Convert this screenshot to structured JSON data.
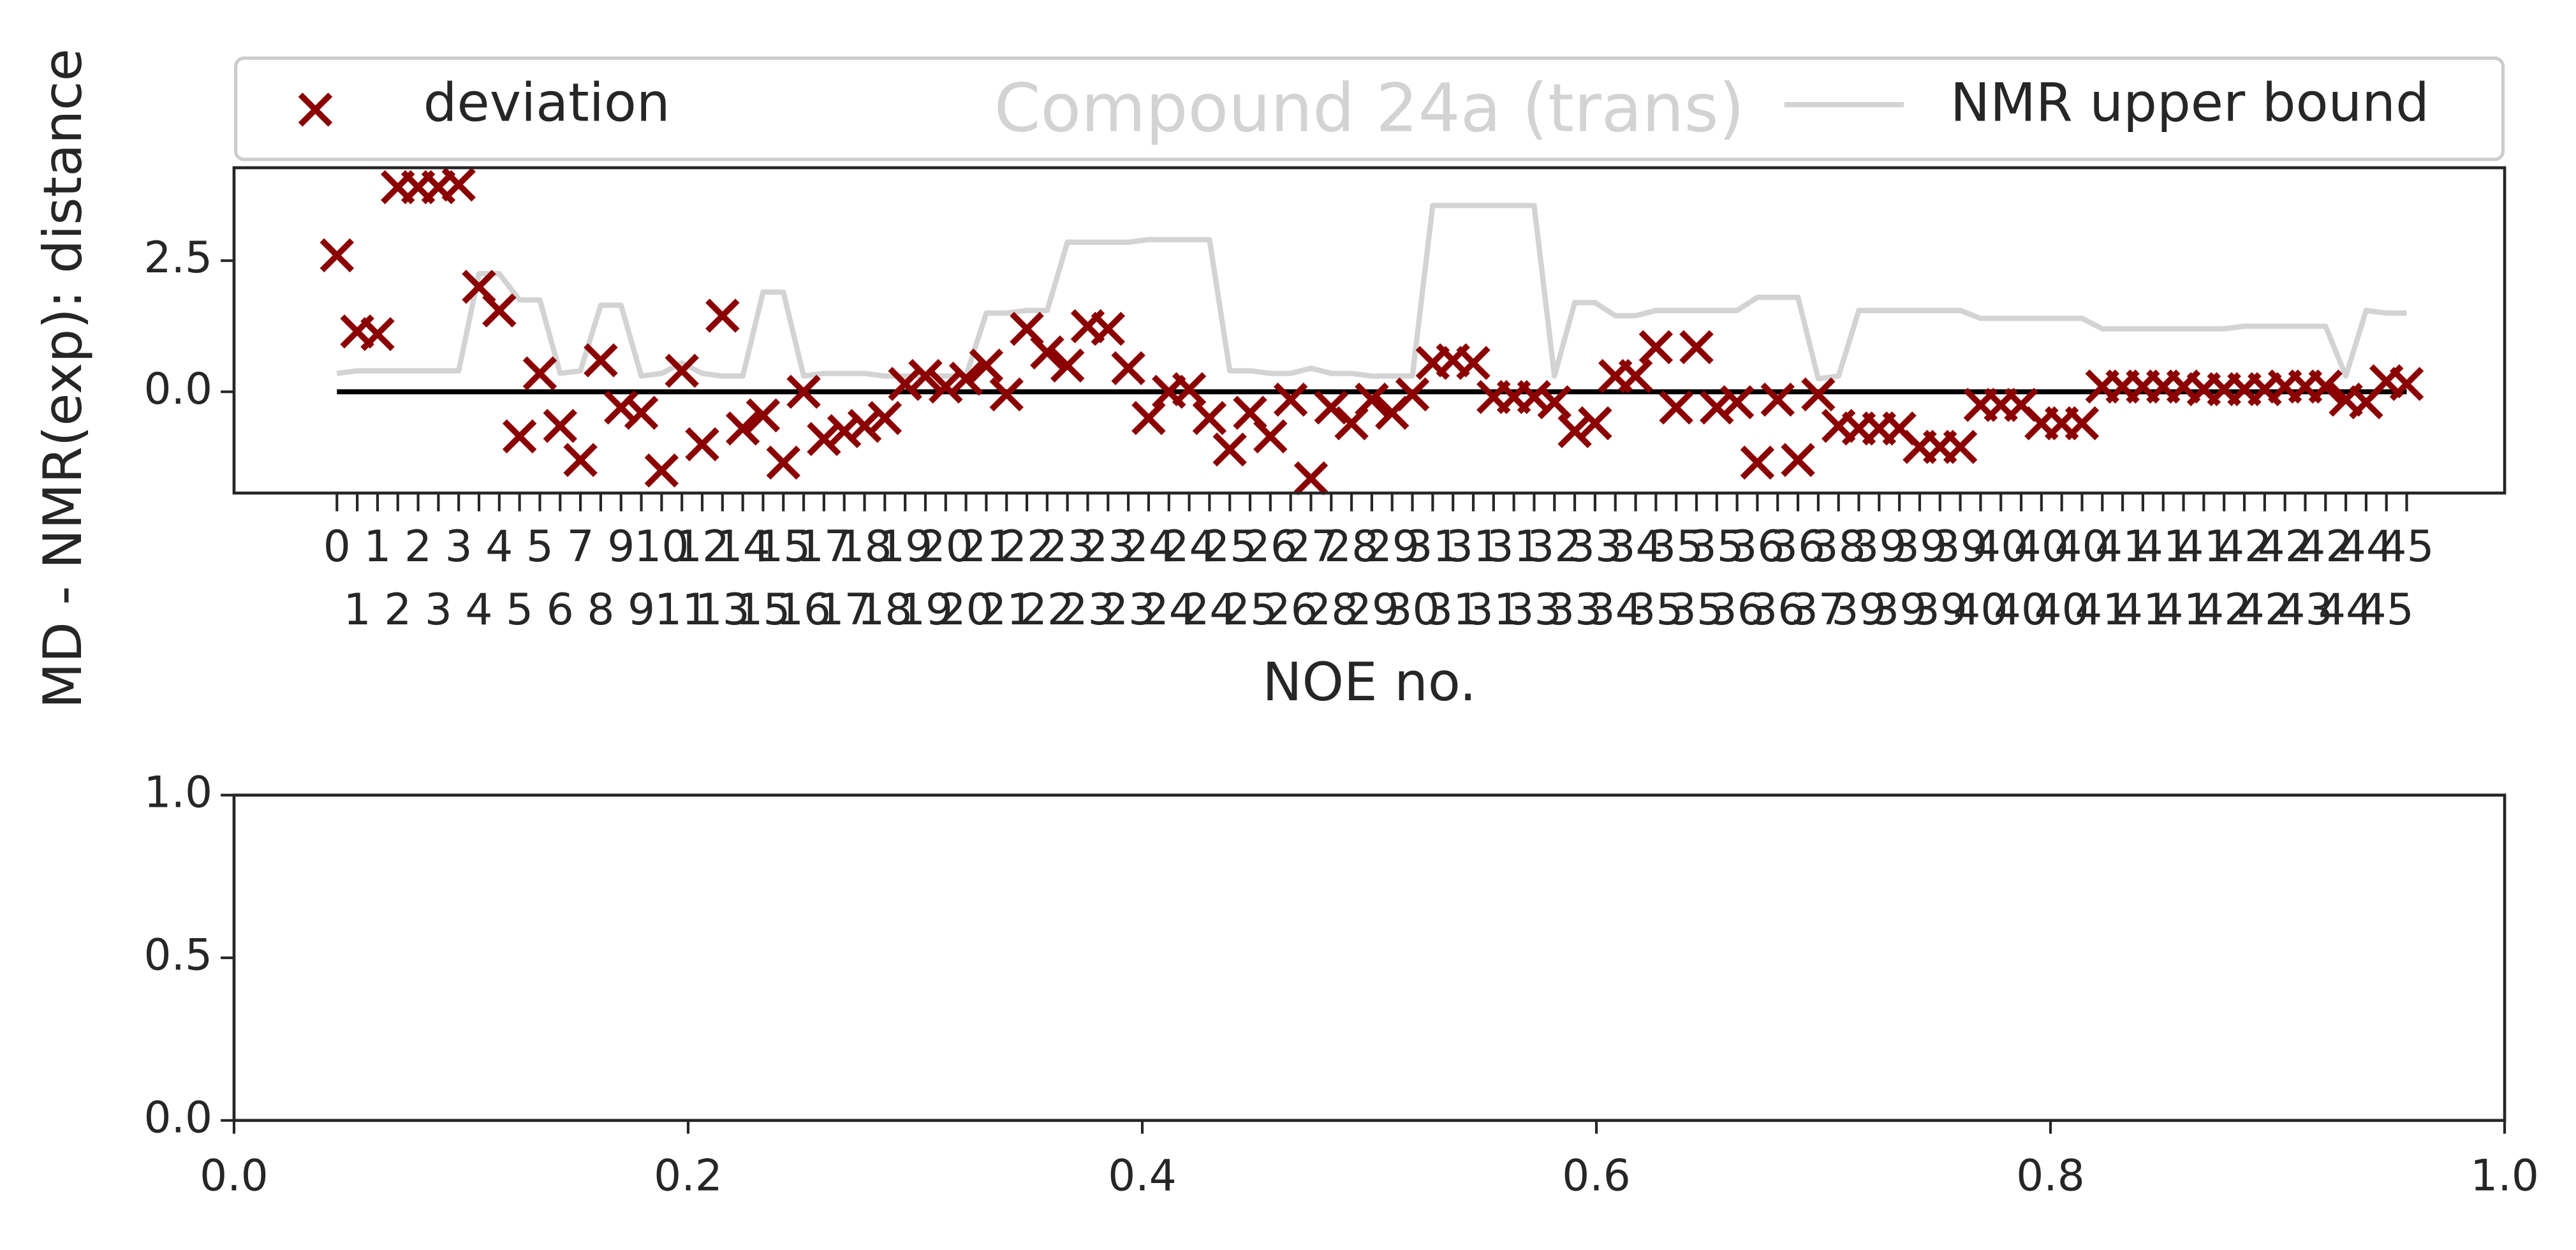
{
  "chart_data": [
    {
      "type": "scatter",
      "title": "Compound 24a (trans)",
      "xlabel": "NOE no.",
      "ylabel": "MD - NMR(exp): distance",
      "categories": [
        "0",
        "1",
        "1",
        "2",
        "2",
        "3",
        "3",
        "4",
        "4",
        "5",
        "5",
        "6",
        "7",
        "8",
        "9",
        "9",
        "10",
        "11",
        "12",
        "13",
        "14",
        "15",
        "15",
        "16",
        "17",
        "17",
        "18",
        "18",
        "19",
        "19",
        "20",
        "20",
        "21",
        "21",
        "22",
        "22",
        "23",
        "23",
        "23",
        "23",
        "24",
        "24",
        "24",
        "24",
        "25",
        "25",
        "26",
        "26",
        "27",
        "28",
        "28",
        "29",
        "29",
        "30",
        "31",
        "31",
        "31",
        "31",
        "31",
        "33",
        "32",
        "33",
        "33",
        "34",
        "34",
        "35",
        "35",
        "35",
        "35",
        "36",
        "36",
        "36",
        "36",
        "37",
        "38",
        "39",
        "39",
        "39",
        "39",
        "39",
        "39",
        "40",
        "40",
        "40",
        "40",
        "40",
        "40",
        "41",
        "41",
        "41",
        "41",
        "41",
        "41",
        "42",
        "42",
        "42",
        "42",
        "43",
        "42",
        "44",
        "44",
        "45",
        "45"
      ],
      "series": [
        {
          "name": "deviation",
          "style": "marker",
          "color": "#8b0000",
          "values": [
            2.6,
            1.15,
            1.1,
            3.9,
            3.9,
            3.9,
            3.95,
            2.0,
            1.55,
            -0.85,
            0.35,
            -0.65,
            -1.3,
            0.6,
            -0.3,
            -0.4,
            -1.5,
            0.4,
            -1.0,
            1.45,
            -0.7,
            -0.45,
            -1.35,
            0.0,
            -0.9,
            -0.75,
            -0.65,
            -0.5,
            0.15,
            0.3,
            0.1,
            0.25,
            0.5,
            -0.05,
            1.2,
            0.75,
            0.5,
            1.25,
            1.2,
            0.45,
            -0.5,
            0.0,
            0.05,
            -0.5,
            -1.1,
            -0.4,
            -0.85,
            -0.15,
            -1.65,
            -0.3,
            -0.6,
            -0.15,
            -0.4,
            -0.05,
            0.55,
            0.6,
            0.55,
            -0.1,
            -0.1,
            -0.1,
            -0.2,
            -0.75,
            -0.6,
            0.3,
            0.3,
            0.85,
            -0.3,
            0.85,
            -0.3,
            -0.2,
            -1.35,
            -0.15,
            -1.3,
            -0.05,
            -0.65,
            -0.7,
            -0.7,
            -0.7,
            -1.05,
            -1.05,
            -1.05,
            -0.25,
            -0.25,
            -0.25,
            -0.6,
            -0.6,
            -0.6,
            0.1,
            0.1,
            0.1,
            0.1,
            0.1,
            0.05,
            0.05,
            0.05,
            0.05,
            0.1,
            0.1,
            0.1,
            -0.15,
            -0.2,
            0.2,
            0.15
          ]
        },
        {
          "name": "NMR upper bound",
          "style": "line",
          "color": "#d3d3d3",
          "values": [
            0.35,
            0.4,
            0.4,
            0.4,
            0.4,
            0.4,
            0.4,
            2.25,
            2.25,
            1.75,
            1.75,
            0.35,
            0.4,
            1.65,
            1.65,
            0.3,
            0.35,
            0.55,
            0.35,
            0.3,
            0.3,
            1.9,
            1.9,
            0.3,
            0.35,
            0.35,
            0.35,
            0.3,
            0.3,
            0.3,
            0.3,
            0.3,
            1.5,
            1.5,
            1.55,
            1.55,
            2.85,
            2.85,
            2.85,
            2.85,
            2.9,
            2.9,
            2.9,
            2.9,
            0.4,
            0.4,
            0.35,
            0.35,
            0.45,
            0.35,
            0.35,
            0.3,
            0.3,
            0.3,
            3.55,
            3.55,
            3.55,
            3.55,
            3.55,
            3.55,
            0.3,
            1.7,
            1.7,
            1.45,
            1.45,
            1.55,
            1.55,
            1.55,
            1.55,
            1.55,
            1.8,
            1.8,
            1.8,
            0.25,
            0.3,
            1.55,
            1.55,
            1.55,
            1.55,
            1.55,
            1.55,
            1.4,
            1.4,
            1.4,
            1.4,
            1.4,
            1.4,
            1.2,
            1.2,
            1.2,
            1.2,
            1.2,
            1.2,
            1.2,
            1.25,
            1.25,
            1.25,
            1.25,
            1.25,
            0.3,
            1.55,
            1.5,
            1.5
          ]
        }
      ],
      "reference_line": 0,
      "ylim": [
        -1.93,
        4.27
      ],
      "yticks": [
        {
          "value": 0,
          "label": "0.0"
        },
        2.5
      ],
      "legend": "top"
    },
    {
      "type": "scatter",
      "xlim": [
        0,
        1
      ],
      "xticks": [
        {
          "value": 0,
          "label": "0.0"
        },
        0.2,
        0.4,
        0.6,
        0.8,
        {
          "value": 1,
          "label": "1.0"
        }
      ],
      "ylim": [
        0,
        1
      ],
      "yticks": [
        {
          "value": 0,
          "label": "0.0"
        },
        0.5,
        {
          "value": 1,
          "label": "1.0"
        }
      ]
    }
  ]
}
